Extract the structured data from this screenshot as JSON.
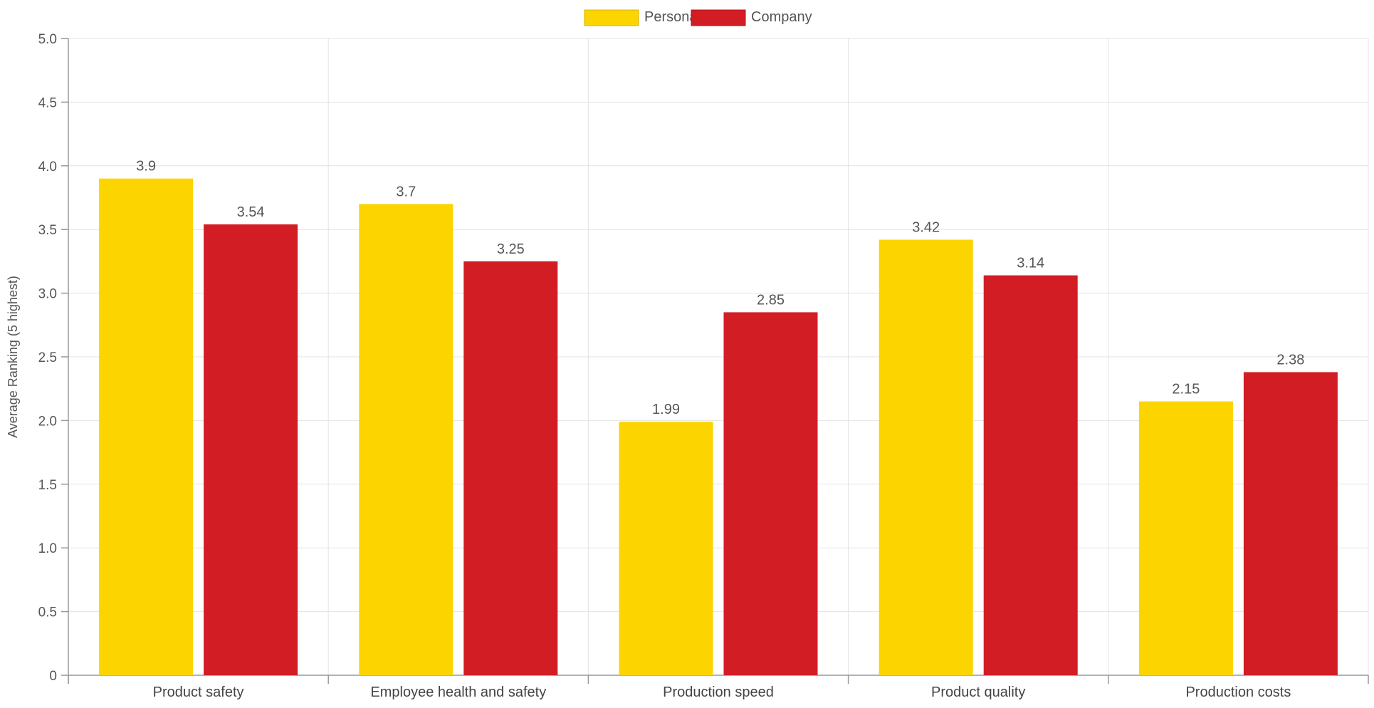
{
  "chart_data": {
    "type": "bar",
    "categories": [
      "Product safety",
      "Employee health and safety",
      "Production speed",
      "Product quality",
      "Production costs"
    ],
    "series": [
      {
        "name": "Personal",
        "values": [
          3.9,
          3.7,
          1.99,
          3.42,
          2.15
        ],
        "labels": [
          "3.9",
          "3.7",
          "1.99",
          "3.42",
          "2.15"
        ],
        "color": "#FCD400"
      },
      {
        "name": "Company",
        "values": [
          3.54,
          3.25,
          2.85,
          3.14,
          2.38
        ],
        "labels": [
          "3.54",
          "3.25",
          "2.85",
          "3.14",
          "2.38"
        ],
        "color": "#D21D24"
      }
    ],
    "ylabel": "Average Ranking (5 highest)",
    "ylim": [
      0,
      5
    ],
    "yticks": [
      0,
      0.5,
      1,
      1.5,
      2,
      2.5,
      3,
      3.5,
      4,
      4.5,
      5
    ],
    "ytick_labels": [
      "0",
      "0.5",
      "1.0",
      "1.5",
      "2.0",
      "2.5",
      "3.0",
      "3.5",
      "4.0",
      "4.5",
      "5.0"
    ],
    "grid": true,
    "legend_position": "top-center"
  }
}
